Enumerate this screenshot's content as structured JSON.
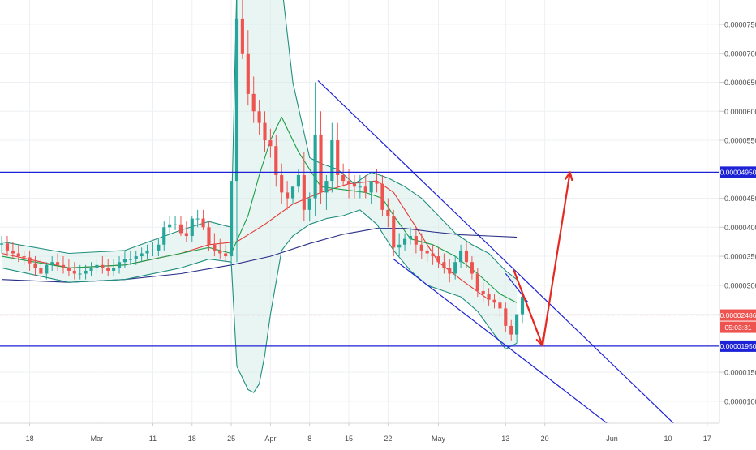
{
  "chart_data": {
    "type": "candlestick",
    "y_axis_labels": [
      "0.00007500",
      "0.00007000",
      "0.00006500",
      "0.00006000",
      "0.00005500",
      "0.00005000",
      "0.00004500",
      "0.00004000",
      "0.00003500",
      "0.00003000",
      "0.00002500",
      "0.00001500",
      "0.00001000"
    ],
    "y_axis_values": [
      7.5e-05,
      7e-05,
      6.5e-05,
      6e-05,
      5.5e-05,
      5e-05,
      4.5e-05,
      4e-05,
      3.5e-05,
      3e-05,
      2.5e-05,
      1.5e-05,
      1e-05
    ],
    "ylim": [
      6.2e-06,
      7.92e-05
    ],
    "x_axis_labels": [
      "18",
      "Mar",
      "11",
      "18",
      "25",
      "Apr",
      "8",
      "15",
      "22",
      "May",
      "13",
      "20",
      "Jun",
      "10",
      "17"
    ],
    "x_axis_days": [
      -12,
      0,
      10,
      17,
      24,
      31,
      38,
      45,
      52,
      61,
      73,
      80,
      92,
      102,
      109
    ],
    "xlim": [
      -17.3,
      111.2
    ],
    "price_tags": [
      {
        "id": "resistance",
        "label": "0.00004950",
        "value": 4.95e-05,
        "color": "#1e22d6"
      },
      {
        "id": "last",
        "label": "0.00002486",
        "value": 2.486e-05,
        "color": "#ef5350"
      },
      {
        "id": "timer",
        "label": "05:03:31",
        "color": "#ef5350"
      },
      {
        "id": "support",
        "label": "0.00001950",
        "value": 1.95e-05,
        "color": "#1e22d6"
      }
    ],
    "horizontal_lines": [
      {
        "name": "resistance",
        "value": 4.95e-05,
        "color": "#1e22d6"
      },
      {
        "name": "support",
        "value": 1.95e-05,
        "color": "#1e22d6"
      },
      {
        "name": "last-price",
        "value": 2.486e-05,
        "color": "#ef5350",
        "dotted": true
      }
    ],
    "trend_lines": [
      {
        "name": "channel-upper",
        "from": [
          39.5,
          6.53e-05
        ],
        "to": [
          104.5,
          4.8e-06
        ]
      },
      {
        "name": "channel-lower",
        "from": [
          53,
          3.45e-05
        ],
        "to": [
          93,
          4.8e-06
        ]
      },
      {
        "name": "channel-inner",
        "from": [
          73,
          3.202e-05
        ],
        "to": [
          77,
          2.705e-05
        ]
      }
    ],
    "arrows": [
      {
        "name": "arrow-down",
        "path": [
          [
            74.5,
            3.25e-05
          ],
          [
            79.6,
            1.96e-05
          ]
        ],
        "color": "#e52920"
      },
      {
        "name": "arrow-up",
        "path": [
          [
            79.6,
            1.96e-05
          ],
          [
            84.5,
            4.95e-05
          ]
        ],
        "color": "#e52920"
      }
    ],
    "candles": {
      "day": [
        -17,
        -16,
        -15,
        -14,
        -13,
        -12,
        -11,
        -10,
        -9,
        -8,
        -7,
        -6,
        -5,
        -4,
        -3,
        -2,
        -1,
        0,
        1,
        2,
        3,
        4,
        5,
        6,
        7,
        8,
        9,
        10,
        11,
        12,
        13,
        14,
        15,
        16,
        17,
        18,
        19,
        20,
        21,
        22,
        23,
        24,
        25,
        26,
        27,
        28,
        29,
        30,
        31,
        32,
        33,
        34,
        35,
        36,
        37,
        38,
        39,
        40,
        41,
        42,
        43,
        44,
        45,
        46,
        47,
        48,
        49,
        50,
        51,
        52,
        53,
        54,
        55,
        56,
        57,
        58,
        59,
        60,
        61,
        62,
        63,
        64,
        65,
        66,
        67,
        68,
        69,
        70,
        71,
        72,
        73,
        74,
        75,
        76
      ],
      "o": [
        3.7,
        3.72,
        3.6,
        3.55,
        3.5,
        3.48,
        3.38,
        3.3,
        3.2,
        3.35,
        3.4,
        3.35,
        3.3,
        3.25,
        3.2,
        3.2,
        3.25,
        3.3,
        3.35,
        3.3,
        3.25,
        3.3,
        3.4,
        3.45,
        3.45,
        3.5,
        3.55,
        3.6,
        3.6,
        3.7,
        4.0,
        4.05,
        4.05,
        3.9,
        3.85,
        4.15,
        4.15,
        4.0,
        3.7,
        3.6,
        3.55,
        3.5,
        4.8,
        7.6,
        7.0,
        6.3,
        6.0,
        5.8,
        5.5,
        5.4,
        4.9,
        4.6,
        4.5,
        4.7,
        4.9,
        4.3,
        4.5,
        5.6,
        4.6,
        4.8,
        5.5,
        4.9,
        4.8,
        4.75,
        4.7,
        4.7,
        4.6,
        4.8,
        4.75,
        4.3,
        4.2,
        3.65,
        3.7,
        3.8,
        3.85,
        3.7,
        3.6,
        3.55,
        3.5,
        3.4,
        3.3,
        3.2,
        3.4,
        3.6,
        3.4,
        3.2,
        2.9,
        2.85,
        2.75,
        2.7,
        2.6,
        2.3,
        2.15,
        2.5,
        2.8,
        2.6
      ],
      "h": [
        3.85,
        3.85,
        3.75,
        3.7,
        3.6,
        3.6,
        3.5,
        3.45,
        3.4,
        3.5,
        3.55,
        3.5,
        3.45,
        3.4,
        3.35,
        3.35,
        3.4,
        3.45,
        3.5,
        3.45,
        3.45,
        3.5,
        3.6,
        3.6,
        3.6,
        3.65,
        3.7,
        3.75,
        3.8,
        4.1,
        4.2,
        4.2,
        4.2,
        4.1,
        4.2,
        4.3,
        4.3,
        4.1,
        3.9,
        3.8,
        3.7,
        3.6,
        8.0,
        8.3,
        7.4,
        6.6,
        6.2,
        6.0,
        5.7,
        5.6,
        5.1,
        4.8,
        4.7,
        5.0,
        5.3,
        4.6,
        6.5,
        6.0,
        4.9,
        5.8,
        5.8,
        5.1,
        5.0,
        4.9,
        4.9,
        4.9,
        4.8,
        5.0,
        4.9,
        4.5,
        4.3,
        3.9,
        3.9,
        4.0,
        4.0,
        3.9,
        3.75,
        3.7,
        3.65,
        3.55,
        3.45,
        3.5,
        3.7,
        3.75,
        3.5,
        3.3,
        3.05,
        2.95,
        2.85,
        2.8,
        2.7,
        2.4,
        2.35,
        2.85,
        2.85,
        2.7
      ],
      "l": [
        3.55,
        3.5,
        3.45,
        3.4,
        3.35,
        3.25,
        3.15,
        3.1,
        3.1,
        3.25,
        3.25,
        3.2,
        3.15,
        3.1,
        3.1,
        3.1,
        3.15,
        3.2,
        3.2,
        3.15,
        3.15,
        3.2,
        3.3,
        3.35,
        3.35,
        3.4,
        3.45,
        3.5,
        3.5,
        3.6,
        3.9,
        3.95,
        3.85,
        3.75,
        3.75,
        4.0,
        3.95,
        3.6,
        3.5,
        3.45,
        3.4,
        3.35,
        3.4,
        6.9,
        6.1,
        5.8,
        5.6,
        5.3,
        5.2,
        4.7,
        4.4,
        4.3,
        4.4,
        4.6,
        4.1,
        4.1,
        4.2,
        4.4,
        4.3,
        4.6,
        4.7,
        4.7,
        4.5,
        4.5,
        4.5,
        4.5,
        4.4,
        4.6,
        4.2,
        4.0,
        3.5,
        3.5,
        3.6,
        3.7,
        3.55,
        3.45,
        3.4,
        3.35,
        3.3,
        3.2,
        3.05,
        3.1,
        3.3,
        3.3,
        3.1,
        2.8,
        2.7,
        2.65,
        2.6,
        2.45,
        2.2,
        2.05,
        2.0,
        2.35,
        2.35,
        2.45
      ],
      "c": [
        3.72,
        3.6,
        3.55,
        3.5,
        3.48,
        3.38,
        3.3,
        3.2,
        3.35,
        3.4,
        3.35,
        3.3,
        3.25,
        3.2,
        3.2,
        3.25,
        3.3,
        3.35,
        3.3,
        3.25,
        3.3,
        3.4,
        3.45,
        3.45,
        3.5,
        3.55,
        3.6,
        3.6,
        3.7,
        4.0,
        4.05,
        4.05,
        3.9,
        3.85,
        4.15,
        4.15,
        4.0,
        3.7,
        3.6,
        3.55,
        3.5,
        4.8,
        7.6,
        7.0,
        6.3,
        6.0,
        5.8,
        5.5,
        5.4,
        4.9,
        4.6,
        4.5,
        4.7,
        4.9,
        4.3,
        4.5,
        5.6,
        4.6,
        4.8,
        5.5,
        4.9,
        4.8,
        4.75,
        4.7,
        4.7,
        4.6,
        4.8,
        4.75,
        4.3,
        4.2,
        3.65,
        3.7,
        3.8,
        3.85,
        3.7,
        3.6,
        3.55,
        3.5,
        3.4,
        3.3,
        3.2,
        3.4,
        3.6,
        3.4,
        3.2,
        2.9,
        2.85,
        2.75,
        2.7,
        2.6,
        2.3,
        2.15,
        2.5,
        2.8,
        2.6,
        2.49
      ],
      "unit": 1e-05
    },
    "indicators": [
      {
        "name": "moving-average-red",
        "color": "#e53935",
        "day": [
          -17,
          -5,
          5,
          15,
          20,
          25,
          30,
          35,
          40,
          45,
          50,
          53,
          57,
          61,
          65,
          70
        ],
        "value": [
          3.55,
          3.3,
          3.35,
          3.55,
          3.7,
          3.75,
          4.05,
          4.4,
          4.6,
          4.75,
          4.8,
          4.6,
          4.0,
          3.4,
          3.1,
          2.75
        ],
        "unit": 1e-05
      },
      {
        "name": "moving-average-green",
        "color": "#1a9e46",
        "day": [
          -17,
          -5,
          5,
          15,
          20,
          24,
          27,
          29,
          31,
          33,
          36,
          40,
          44,
          48,
          51,
          53,
          56,
          60,
          64,
          68,
          72,
          75
        ],
        "value": [
          3.5,
          3.3,
          3.35,
          3.55,
          3.65,
          3.55,
          4.2,
          4.9,
          5.5,
          5.9,
          5.3,
          4.7,
          4.65,
          4.6,
          4.5,
          4.2,
          3.8,
          3.7,
          3.5,
          3.2,
          2.85,
          2.7
        ],
        "unit": 1e-05
      },
      {
        "name": "moving-average-navy",
        "color": "#272d85",
        "day": [
          -17,
          -5,
          5,
          15,
          24,
          31,
          38,
          44,
          50,
          55,
          60,
          65,
          70,
          75
        ],
        "value": [
          3.1,
          3.05,
          3.1,
          3.2,
          3.35,
          3.5,
          3.72,
          3.88,
          3.98,
          3.98,
          3.92,
          3.87,
          3.85,
          3.83
        ],
        "unit": 1e-05
      },
      {
        "name": "bollinger-upper",
        "color": "#1f8f7e",
        "day": [
          -17,
          -5,
          5,
          15,
          20,
          24,
          25,
          27,
          29,
          31,
          33,
          35,
          38,
          40,
          43,
          46,
          49,
          52,
          55,
          58,
          61,
          64,
          67,
          70,
          73,
          75
        ],
        "value": [
          3.75,
          3.55,
          3.6,
          3.95,
          4.1,
          4.0,
          8.2,
          8.8,
          9.0,
          8.8,
          8.2,
          6.5,
          5.2,
          5.1,
          5.0,
          4.75,
          4.95,
          4.85,
          4.7,
          4.5,
          4.2,
          3.9,
          3.7,
          3.55,
          3.25,
          3.1
        ],
        "unit": 1e-05
      },
      {
        "name": "bollinger-lower",
        "color": "#1f8f7e",
        "day": [
          -17,
          -5,
          5,
          15,
          20,
          24,
          25,
          27,
          28,
          29,
          30,
          31,
          33,
          35,
          38,
          41,
          44,
          47,
          50,
          53,
          56,
          59,
          62,
          65,
          68,
          71,
          73,
          75
        ],
        "value": [
          3.3,
          3.05,
          3.1,
          3.3,
          3.45,
          3.4,
          1.6,
          1.2,
          1.15,
          1.3,
          1.8,
          2.5,
          3.6,
          3.85,
          4.05,
          4.15,
          4.2,
          4.3,
          4.05,
          3.6,
          3.25,
          3.0,
          2.9,
          2.8,
          2.55,
          2.15,
          1.9,
          2.0
        ],
        "unit": 1e-05
      }
    ]
  }
}
